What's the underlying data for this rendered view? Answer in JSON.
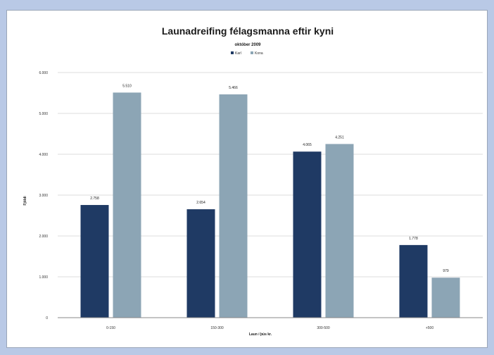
{
  "chart_data": {
    "type": "bar",
    "title": "Launadreifing félagsmanna eftir kyni",
    "subtitle": "október 2009",
    "xlabel": "Laun í þús kr.",
    "ylabel": "Fjöldi",
    "categories": [
      "0-150",
      "150-300",
      "300-500",
      "+500"
    ],
    "series": [
      {
        "name": "Karl",
        "values": [
          2758,
          2654,
          4065,
          1778
        ],
        "labels": [
          "2.758",
          "2.654",
          "4.065",
          "1.778"
        ],
        "color": "#1f3a64"
      },
      {
        "name": "Kona",
        "values": [
          5510,
          5466,
          4251,
          979
        ],
        "labels": [
          "5.510",
          "5.466",
          "4.251",
          "979"
        ],
        "color": "#8ca5b5"
      }
    ],
    "ylim": [
      0,
      6000
    ],
    "yticks": [
      0,
      1000,
      2000,
      3000,
      4000,
      5000,
      6000
    ],
    "ytick_labels": [
      "0",
      "1.000",
      "2.000",
      "3.000",
      "4.000",
      "5.000",
      "6.000"
    ],
    "grid": true,
    "legend_position": "top"
  }
}
